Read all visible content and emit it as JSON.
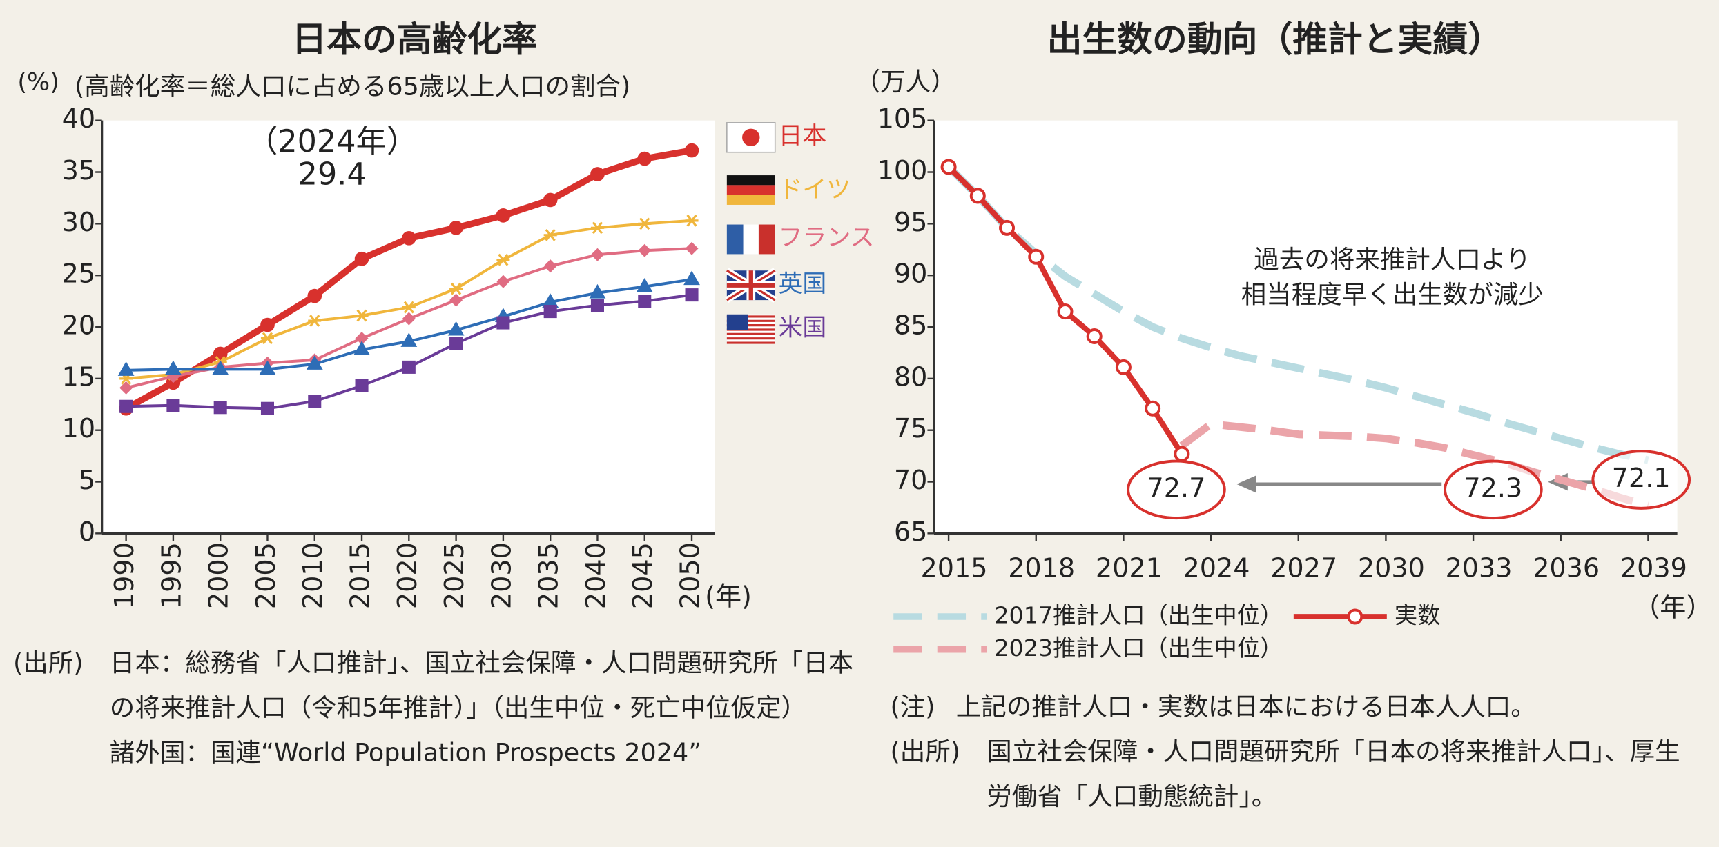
{
  "chart_data": [
    {
      "type": "line",
      "title": "日本の高齢化率",
      "subtitle": "(高齢化率＝総人口に占める65歳以上人口の割合)",
      "y_label": "(%)",
      "x_label": "(年)",
      "categories": [
        "1990",
        "1995",
        "2000",
        "2005",
        "2010",
        "2015",
        "2020",
        "2025",
        "2030",
        "2035",
        "2040",
        "2045",
        "2050"
      ],
      "ylim": [
        0,
        40
      ],
      "yticks": [
        0,
        5,
        10,
        15,
        20,
        25,
        30,
        35,
        40
      ],
      "annotation": [
        "（2024年）",
        "29.4"
      ],
      "series": [
        {
          "name": "日本",
          "color": "#d8312d",
          "marker": "circle",
          "values": [
            12.1,
            14.6,
            17.4,
            20.2,
            23.0,
            26.6,
            28.6,
            29.6,
            30.8,
            32.3,
            34.8,
            36.3,
            37.1
          ]
        },
        {
          "name": "ドイツ",
          "color": "#f0b63c",
          "marker": "star",
          "values": [
            15.0,
            15.4,
            16.6,
            18.9,
            20.6,
            21.1,
            21.9,
            23.7,
            26.5,
            28.9,
            29.6,
            30.0,
            30.3
          ]
        },
        {
          "name": "フランス",
          "color": "#e06c82",
          "marker": "diamond",
          "values": [
            14.1,
            15.2,
            16.1,
            16.5,
            16.8,
            18.9,
            20.8,
            22.6,
            24.4,
            25.9,
            27.0,
            27.4,
            27.6
          ]
        },
        {
          "name": "英国",
          "color": "#2e6db6",
          "marker": "triangle",
          "values": [
            15.8,
            15.9,
            15.9,
            15.9,
            16.4,
            17.8,
            18.6,
            19.7,
            21.0,
            22.4,
            23.3,
            23.9,
            24.6
          ]
        },
        {
          "name": "米国",
          "color": "#6a3b98",
          "marker": "square",
          "values": [
            12.3,
            12.4,
            12.2,
            12.1,
            12.8,
            14.3,
            16.1,
            18.4,
            20.4,
            21.5,
            22.1,
            22.5,
            23.1
          ]
        }
      ]
    },
    {
      "type": "line",
      "title": "出生数の動向（推計と実績）",
      "y_label": "（万人）",
      "x_label": "（年）",
      "xlim": [
        2014.5,
        2040
      ],
      "xticks": [
        2015,
        2018,
        2021,
        2024,
        2027,
        2030,
        2033,
        2036,
        2039
      ],
      "ylim": [
        65,
        105
      ],
      "yticks": [
        65,
        70,
        75,
        80,
        85,
        90,
        95,
        100,
        105
      ],
      "annotation": [
        "過去の将来推計人口より",
        "相当程度早く出生数が減少"
      ],
      "callouts": [
        "72.7",
        "72.3",
        "72.1"
      ],
      "series": [
        {
          "name": "2017推計人口（出生中位）",
          "color": "#b8dbe1",
          "style": "dashed",
          "x": [
            2015,
            2016,
            2017,
            2018,
            2019,
            2020,
            2021,
            2022,
            2023,
            2024,
            2025,
            2026,
            2027,
            2028,
            2029,
            2030,
            2031,
            2032,
            2033,
            2034,
            2035,
            2036,
            2037,
            2038,
            2039
          ],
          "values": [
            100.5,
            97.7,
            94.6,
            92.1,
            89.9,
            88.2,
            86.5,
            85.0,
            83.9,
            83.0,
            82.2,
            81.6,
            81.0,
            80.4,
            79.8,
            79.1,
            78.3,
            77.5,
            76.7,
            75.8,
            75.0,
            74.2,
            73.4,
            72.7,
            72.1
          ]
        },
        {
          "name": "2023推計人口（出生中位）",
          "color": "#eba4a9",
          "style": "dashed",
          "x": [
            2023,
            2024,
            2025,
            2026,
            2027,
            2028,
            2029,
            2030,
            2031,
            2032,
            2033,
            2034,
            2035,
            2036,
            2037,
            2038,
            2039
          ],
          "values": [
            73.5,
            75.6,
            75.3,
            75.0,
            74.6,
            74.5,
            74.4,
            74.2,
            73.8,
            73.3,
            72.6,
            71.9,
            71.0,
            70.2,
            69.4,
            68.5,
            67.7
          ]
        },
        {
          "name": "実数",
          "color": "#d8312d",
          "style": "solid",
          "marker": "open-circle",
          "x": [
            2015,
            2016,
            2017,
            2018,
            2019,
            2020,
            2021,
            2022,
            2023
          ],
          "values": [
            100.5,
            97.7,
            94.6,
            91.8,
            86.5,
            84.1,
            81.1,
            77.1,
            72.7
          ]
        }
      ]
    }
  ],
  "notes": {
    "left": {
      "label": "(出所)",
      "lines": [
        "日本：総務省「人口推計」、国立社会保障・人口問題研究所「日本の将来推計人口（令和5年推計）」（出生中位・死亡中位仮定）",
        "諸外国：国連“World Population Prospects 2024”"
      ]
    },
    "right": [
      {
        "label": "(注)",
        "text": "上記の推計人口・実数は日本における日本人人口。"
      },
      {
        "label": "(出所)",
        "text": "国立社会保障・人口問題研究所「日本の将来推計人口」、厚生労働省「人口動態統計」。"
      }
    ]
  }
}
